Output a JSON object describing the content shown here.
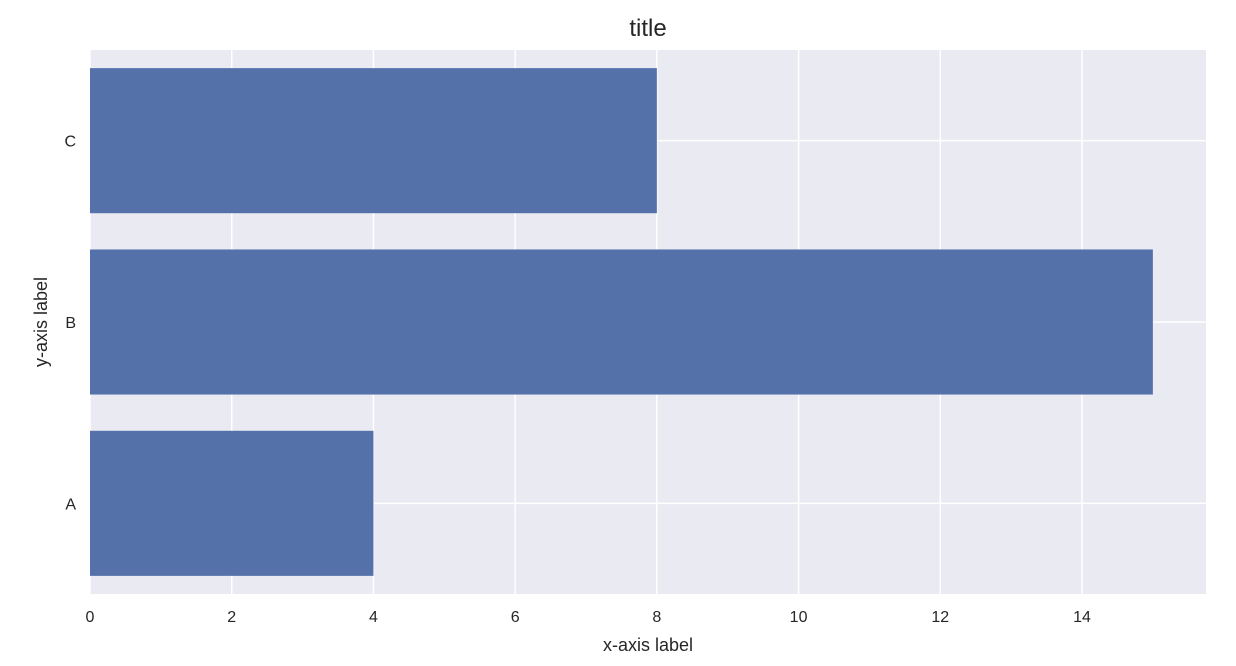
{
  "chart_data": {
    "type": "bar",
    "orientation": "horizontal",
    "title": "title",
    "xlabel": "x-axis label",
    "ylabel": "y-axis label",
    "categories": [
      "A",
      "B",
      "C"
    ],
    "values": [
      4,
      15,
      8
    ],
    "xlim": [
      0,
      15.75
    ],
    "xticks": [
      0,
      2,
      4,
      6,
      8,
      10,
      12,
      14
    ],
    "grid": true,
    "legend": "none",
    "colors": {
      "bar": "#5471AA",
      "plot_background": "#EAEAF2",
      "grid": "#FFFFFF",
      "text": "#262626"
    }
  }
}
